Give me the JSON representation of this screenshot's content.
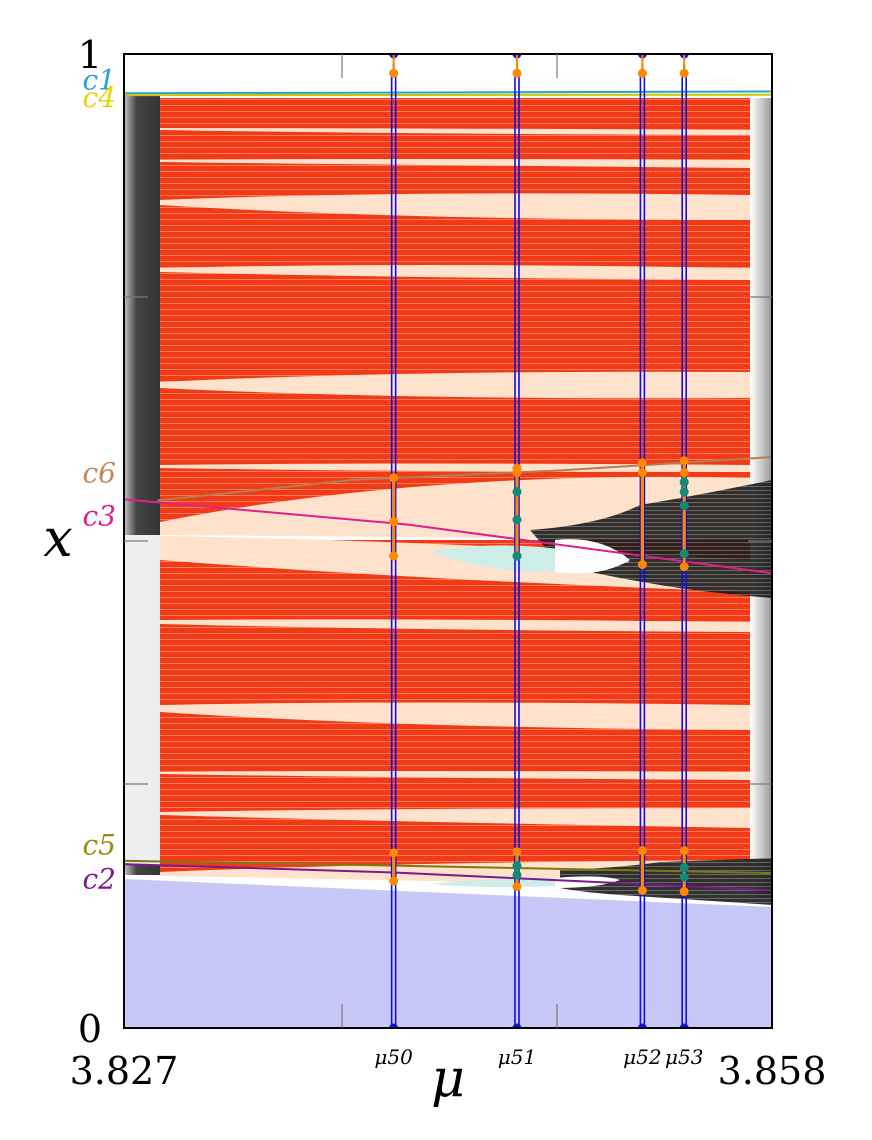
{
  "chart_data": {
    "type": "scatter",
    "xlabel": "μ",
    "ylabel": "x",
    "xlim": [
      3.827,
      3.858
    ],
    "ylim": [
      0,
      1
    ],
    "x_tick_labels": [
      "3.827",
      "3.858"
    ],
    "y_tick_labels": [
      "0",
      "1"
    ],
    "parameter_markers": [
      {
        "label": "μ50",
        "mu": 3.8399
      },
      {
        "label": "μ51",
        "mu": 3.8458
      },
      {
        "label": "μ52",
        "mu": 3.8518
      },
      {
        "label": "μ53",
        "mu": 3.8538
      }
    ],
    "curve_labels": [
      {
        "label": "c1",
        "color": "#29a3d6",
        "x": 0.9737
      },
      {
        "label": "c4",
        "color": "#e6d600",
        "x": 0.9561
      },
      {
        "label": "c6",
        "color": "#c08a5a",
        "x": 0.5702
      },
      {
        "label": "c3",
        "color": "#e0208a",
        "x": 0.5263
      },
      {
        "label": "c5",
        "color": "#9a8a10",
        "x": 0.1886
      },
      {
        "label": "c2",
        "color": "#7a1a8a",
        "x": 0.1535
      }
    ],
    "curves": [
      {
        "name": "c1",
        "color": "#29a3d6",
        "points": [
          [
            3.827,
            0.9597
          ],
          [
            3.858,
            0.9615
          ]
        ]
      },
      {
        "name": "c4",
        "color": "#c8c800",
        "points": [
          [
            3.827,
            0.9578
          ],
          [
            3.858,
            0.9582
          ]
        ]
      },
      {
        "name": "c6",
        "color": "#b08050",
        "points": [
          [
            3.8286,
            0.5416
          ],
          [
            3.838,
            0.5628
          ],
          [
            3.848,
            0.5726
          ],
          [
            3.858,
            0.5862
          ]
        ]
      },
      {
        "name": "c3",
        "color": "#e0208a",
        "points": [
          [
            3.827,
            0.5428
          ],
          [
            3.8406,
            0.5168
          ],
          [
            3.858,
            0.4669
          ]
        ]
      },
      {
        "name": "c5",
        "color": "#7a7a10",
        "points": [
          [
            3.827,
            0.1717
          ],
          [
            3.8399,
            0.1667
          ],
          [
            3.858,
            0.159
          ]
        ]
      },
      {
        "name": "c2",
        "color": "#7a1a8a",
        "points": [
          [
            3.827,
            0.1683
          ],
          [
            3.8399,
            0.1596
          ],
          [
            3.858,
            0.1414
          ]
        ]
      }
    ],
    "vertical_lines": [
      3.8399,
      3.8458,
      3.8518,
      3.8538
    ],
    "orange_points": [
      {
        "mu": 3.8399,
        "x": [
          0.9802,
          0.5649,
          0.5198,
          0.4846,
          0.1798,
          0.1509
        ]
      },
      {
        "mu": 3.8458,
        "x": [
          0.9802,
          0.5747,
          0.5703,
          0.4846,
          0.1809,
          0.1451
        ]
      },
      {
        "mu": 3.8518,
        "x": [
          0.9802,
          0.5802,
          0.5703,
          0.4758,
          0.1821,
          0.1412
        ]
      },
      {
        "mu": 3.8538,
        "x": [
          0.9802,
          0.5824,
          0.5703,
          0.4736,
          0.1821,
          0.1401
        ]
      }
    ],
    "teal_points": [
      {
        "mu": 3.8458,
        "x": [
          0.5505,
          0.5219,
          0.4846,
          0.1667,
          0.1571
        ]
      },
      {
        "mu": 3.8538,
        "x": [
          0.5604,
          0.5505,
          0.5363,
          0.4868,
          0.1648,
          0.1549
        ]
      }
    ],
    "regions": [
      {
        "name": "lower-band",
        "color": "#c8c8f8",
        "x_range": [
          0,
          0.16
        ]
      },
      {
        "name": "red-bands",
        "color": "#ee2200",
        "mu_range": [
          3.8286,
          3.857
        ]
      },
      {
        "name": "chaotic-window",
        "color": "#111111",
        "mu_range": [
          3.8505,
          3.858
        ]
      }
    ],
    "grid": false,
    "legend": "none"
  }
}
